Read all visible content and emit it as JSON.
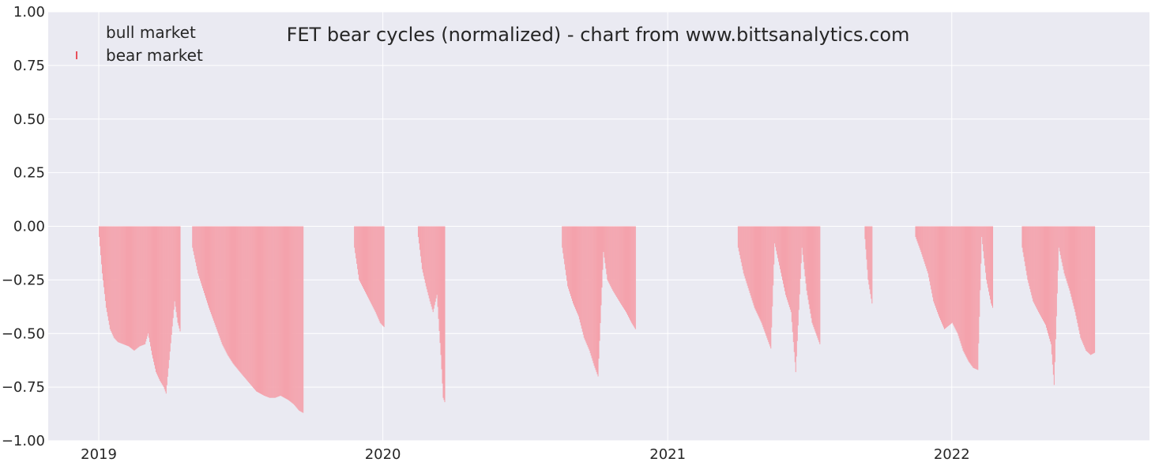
{
  "chart_data": {
    "type": "bar",
    "title": "FET bear cycles (normalized)  - chart from www.bittsanalytics.com",
    "xlabel": "",
    "ylabel": "",
    "ylim": [
      -1.0,
      1.0
    ],
    "xlim": [
      "2018-10-28",
      "2022-09-12"
    ],
    "y_ticks": [
      "1.00",
      "0.75",
      "0.50",
      "0.25",
      "0.00",
      "−0.25",
      "−0.50",
      "−0.75",
      "−1.00"
    ],
    "y_tick_values": [
      1.0,
      0.75,
      0.5,
      0.25,
      0.0,
      -0.25,
      -0.5,
      -0.75,
      -1.0
    ],
    "x_ticks": [
      {
        "label": "2019",
        "date": "2019-01-01"
      },
      {
        "label": "2020",
        "date": "2020-01-01"
      },
      {
        "label": "2021",
        "date": "2021-01-01"
      },
      {
        "label": "2022",
        "date": "2022-01-01"
      }
    ],
    "grid": true,
    "legend_position": "top-left",
    "series": [
      {
        "name": "bull market",
        "color": "#2ca02c",
        "points": []
      },
      {
        "name": "bear market",
        "color": "#f08080",
        "points": [
          [
            "2019-01-01",
            -0.05
          ],
          [
            "2019-01-05",
            -0.22
          ],
          [
            "2019-01-10",
            -0.38
          ],
          [
            "2019-01-15",
            -0.48
          ],
          [
            "2019-01-20",
            -0.52
          ],
          [
            "2019-01-25",
            -0.54
          ],
          [
            "2019-02-01",
            -0.55
          ],
          [
            "2019-02-08",
            -0.56
          ],
          [
            "2019-02-15",
            -0.58
          ],
          [
            "2019-02-22",
            -0.56
          ],
          [
            "2019-03-01",
            -0.55
          ],
          [
            "2019-03-05",
            -0.5
          ],
          [
            "2019-03-10",
            -0.6
          ],
          [
            "2019-03-15",
            -0.68
          ],
          [
            "2019-03-20",
            -0.72
          ],
          [
            "2019-03-25",
            -0.75
          ],
          [
            "2019-03-28",
            -0.78
          ],
          [
            "2019-04-08",
            -0.35
          ],
          [
            "2019-04-12",
            -0.45
          ],
          [
            "2019-04-15",
            -0.49
          ],
          [
            "2019-05-01",
            -0.1
          ],
          [
            "2019-05-08",
            -0.22
          ],
          [
            "2019-05-15",
            -0.3
          ],
          [
            "2019-05-22",
            -0.38
          ],
          [
            "2019-06-01",
            -0.48
          ],
          [
            "2019-06-08",
            -0.55
          ],
          [
            "2019-06-15",
            -0.6
          ],
          [
            "2019-06-22",
            -0.64
          ],
          [
            "2019-07-01",
            -0.68
          ],
          [
            "2019-07-08",
            -0.71
          ],
          [
            "2019-07-15",
            -0.74
          ],
          [
            "2019-07-22",
            -0.77
          ],
          [
            "2019-08-01",
            -0.79
          ],
          [
            "2019-08-08",
            -0.8
          ],
          [
            "2019-08-15",
            -0.8
          ],
          [
            "2019-08-22",
            -0.79
          ],
          [
            "2019-09-01",
            -0.81
          ],
          [
            "2019-09-08",
            -0.83
          ],
          [
            "2019-09-15",
            -0.86
          ],
          [
            "2019-09-20",
            -0.87
          ],
          [
            "2019-11-25",
            -0.1
          ],
          [
            "2019-12-01",
            -0.25
          ],
          [
            "2019-12-08",
            -0.3
          ],
          [
            "2019-12-15",
            -0.35
          ],
          [
            "2019-12-22",
            -0.4
          ],
          [
            "2019-12-28",
            -0.45
          ],
          [
            "2020-01-02",
            -0.47
          ],
          [
            "2020-02-15",
            -0.05
          ],
          [
            "2020-02-20",
            -0.2
          ],
          [
            "2020-02-25",
            -0.28
          ],
          [
            "2020-03-01",
            -0.35
          ],
          [
            "2020-03-05",
            -0.4
          ],
          [
            "2020-03-10",
            -0.32
          ],
          [
            "2020-03-15",
            -0.6
          ],
          [
            "2020-03-18",
            -0.8
          ],
          [
            "2020-03-20",
            -0.82
          ],
          [
            "2020-08-18",
            -0.1
          ],
          [
            "2020-08-25",
            -0.28
          ],
          [
            "2020-09-01",
            -0.36
          ],
          [
            "2020-09-08",
            -0.42
          ],
          [
            "2020-09-15",
            -0.52
          ],
          [
            "2020-09-22",
            -0.58
          ],
          [
            "2020-09-28",
            -0.65
          ],
          [
            "2020-10-03",
            -0.7
          ],
          [
            "2020-10-10",
            -0.12
          ],
          [
            "2020-10-15",
            -0.25
          ],
          [
            "2020-10-22",
            -0.3
          ],
          [
            "2020-11-01",
            -0.36
          ],
          [
            "2020-11-08",
            -0.4
          ],
          [
            "2020-11-15",
            -0.45
          ],
          [
            "2020-11-20",
            -0.48
          ],
          [
            "2021-04-01",
            -0.1
          ],
          [
            "2021-04-08",
            -0.22
          ],
          [
            "2021-04-15",
            -0.3
          ],
          [
            "2021-04-22",
            -0.38
          ],
          [
            "2021-05-01",
            -0.45
          ],
          [
            "2021-05-08",
            -0.52
          ],
          [
            "2021-05-13",
            -0.57
          ],
          [
            "2021-05-18",
            -0.08
          ],
          [
            "2021-05-25",
            -0.2
          ],
          [
            "2021-06-01",
            -0.32
          ],
          [
            "2021-06-08",
            -0.4
          ],
          [
            "2021-06-14",
            -0.68
          ],
          [
            "2021-06-22",
            -0.1
          ],
          [
            "2021-06-28",
            -0.3
          ],
          [
            "2021-07-05",
            -0.45
          ],
          [
            "2021-07-10",
            -0.5
          ],
          [
            "2021-07-15",
            -0.55
          ],
          [
            "2021-09-11",
            -0.06
          ],
          [
            "2021-09-15",
            -0.25
          ],
          [
            "2021-09-20",
            -0.36
          ],
          [
            "2021-11-15",
            -0.05
          ],
          [
            "2021-11-22",
            -0.12
          ],
          [
            "2021-12-01",
            -0.22
          ],
          [
            "2021-12-08",
            -0.35
          ],
          [
            "2021-12-15",
            -0.42
          ],
          [
            "2021-12-22",
            -0.48
          ],
          [
            "2022-01-01",
            -0.45
          ],
          [
            "2022-01-08",
            -0.5
          ],
          [
            "2022-01-15",
            -0.58
          ],
          [
            "2022-01-22",
            -0.63
          ],
          [
            "2022-01-28",
            -0.66
          ],
          [
            "2022-02-03",
            -0.67
          ],
          [
            "2022-02-08",
            -0.05
          ],
          [
            "2022-02-14",
            -0.25
          ],
          [
            "2022-02-20",
            -0.36
          ],
          [
            "2022-02-22",
            -0.38
          ],
          [
            "2022-04-01",
            -0.1
          ],
          [
            "2022-04-08",
            -0.25
          ],
          [
            "2022-04-15",
            -0.35
          ],
          [
            "2022-04-22",
            -0.4
          ],
          [
            "2022-05-01",
            -0.46
          ],
          [
            "2022-05-08",
            -0.55
          ],
          [
            "2022-05-12",
            -0.74
          ],
          [
            "2022-05-18",
            -0.1
          ],
          [
            "2022-05-25",
            -0.22
          ],
          [
            "2022-06-01",
            -0.3
          ],
          [
            "2022-06-08",
            -0.4
          ],
          [
            "2022-06-15",
            -0.52
          ],
          [
            "2022-06-22",
            -0.58
          ],
          [
            "2022-06-28",
            -0.6
          ],
          [
            "2022-07-03",
            -0.59
          ]
        ]
      }
    ]
  }
}
